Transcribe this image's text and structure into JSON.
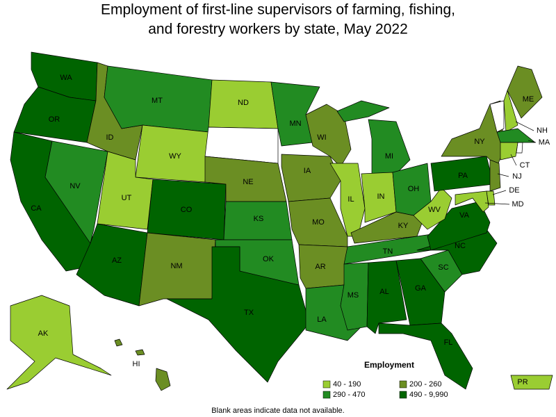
{
  "title": [
    "Employment of first-line supervisors of farming, fishing,",
    "and forestry workers by state, May 2022"
  ],
  "legend": {
    "title": "Employment",
    "items": [
      {
        "label": "40 - 190",
        "color": "#9acd32"
      },
      {
        "label": "200 - 260",
        "color": "#6b8e23"
      },
      {
        "label": "290 - 470",
        "color": "#228b22"
      },
      {
        "label": "490 - 9,990",
        "color": "#006400"
      }
    ]
  },
  "states": [
    {
      "label": "WA",
      "class": 3
    },
    {
      "label": "OR",
      "class": 3
    },
    {
      "label": "CA",
      "class": 3
    },
    {
      "label": "NV",
      "class": 2
    },
    {
      "label": "ID",
      "class": 1
    },
    {
      "label": "MT",
      "class": 2
    },
    {
      "label": "WY",
      "class": 0
    },
    {
      "label": "UT",
      "class": 0
    },
    {
      "label": "CO",
      "class": 3
    },
    {
      "label": "AZ",
      "class": 3
    },
    {
      "label": "NM",
      "class": 1
    },
    {
      "label": "ND",
      "class": 0
    },
    {
      "label": null,
      "class": null
    },
    {
      "label": "NE",
      "class": 1
    },
    {
      "label": "KS",
      "class": 2
    },
    {
      "label": "OK",
      "class": 2
    },
    {
      "label": "TX",
      "class": 3
    },
    {
      "label": "MN",
      "class": 2
    },
    {
      "label": "IA",
      "class": 1
    },
    {
      "label": "MO",
      "class": 1
    },
    {
      "label": "AR",
      "class": 1
    },
    {
      "label": "LA",
      "class": 2
    },
    {
      "label": "WI",
      "class": 1
    },
    {
      "label": "IL",
      "class": 0
    },
    {
      "label": "MI",
      "class": 2
    },
    {
      "label": "IN",
      "class": 0
    },
    {
      "label": "OH",
      "class": 2
    },
    {
      "label": "KY",
      "class": 1
    },
    {
      "label": "TN",
      "class": 2
    },
    {
      "label": "MS",
      "class": 2
    },
    {
      "label": "AL",
      "class": 3
    },
    {
      "label": "GA",
      "class": 3
    },
    {
      "label": "FL",
      "class": 3
    },
    {
      "label": "SC",
      "class": 2
    },
    {
      "label": "NC",
      "class": 3
    },
    {
      "label": "VA",
      "class": 3
    },
    {
      "label": "WV",
      "class": 0
    },
    {
      "label": "PA",
      "class": 3
    },
    {
      "label": "NY",
      "class": 1
    },
    {
      "label": null,
      "class": null
    },
    {
      "label": "NH",
      "class": 0
    },
    {
      "label": "ME",
      "class": 1
    },
    {
      "label": "MA",
      "class": 2
    },
    {
      "label": "CT",
      "class": 0
    },
    {
      "label": "NJ",
      "class": 1
    },
    {
      "label": "DE",
      "class": 0
    },
    {
      "label": "MD",
      "class": 0
    },
    {
      "label": "AK",
      "class": 0
    },
    {
      "label": "HI",
      "class": 1
    },
    {
      "label": "PR",
      "class": 0
    }
  ],
  "note": "Blank areas indicate data not available."
}
